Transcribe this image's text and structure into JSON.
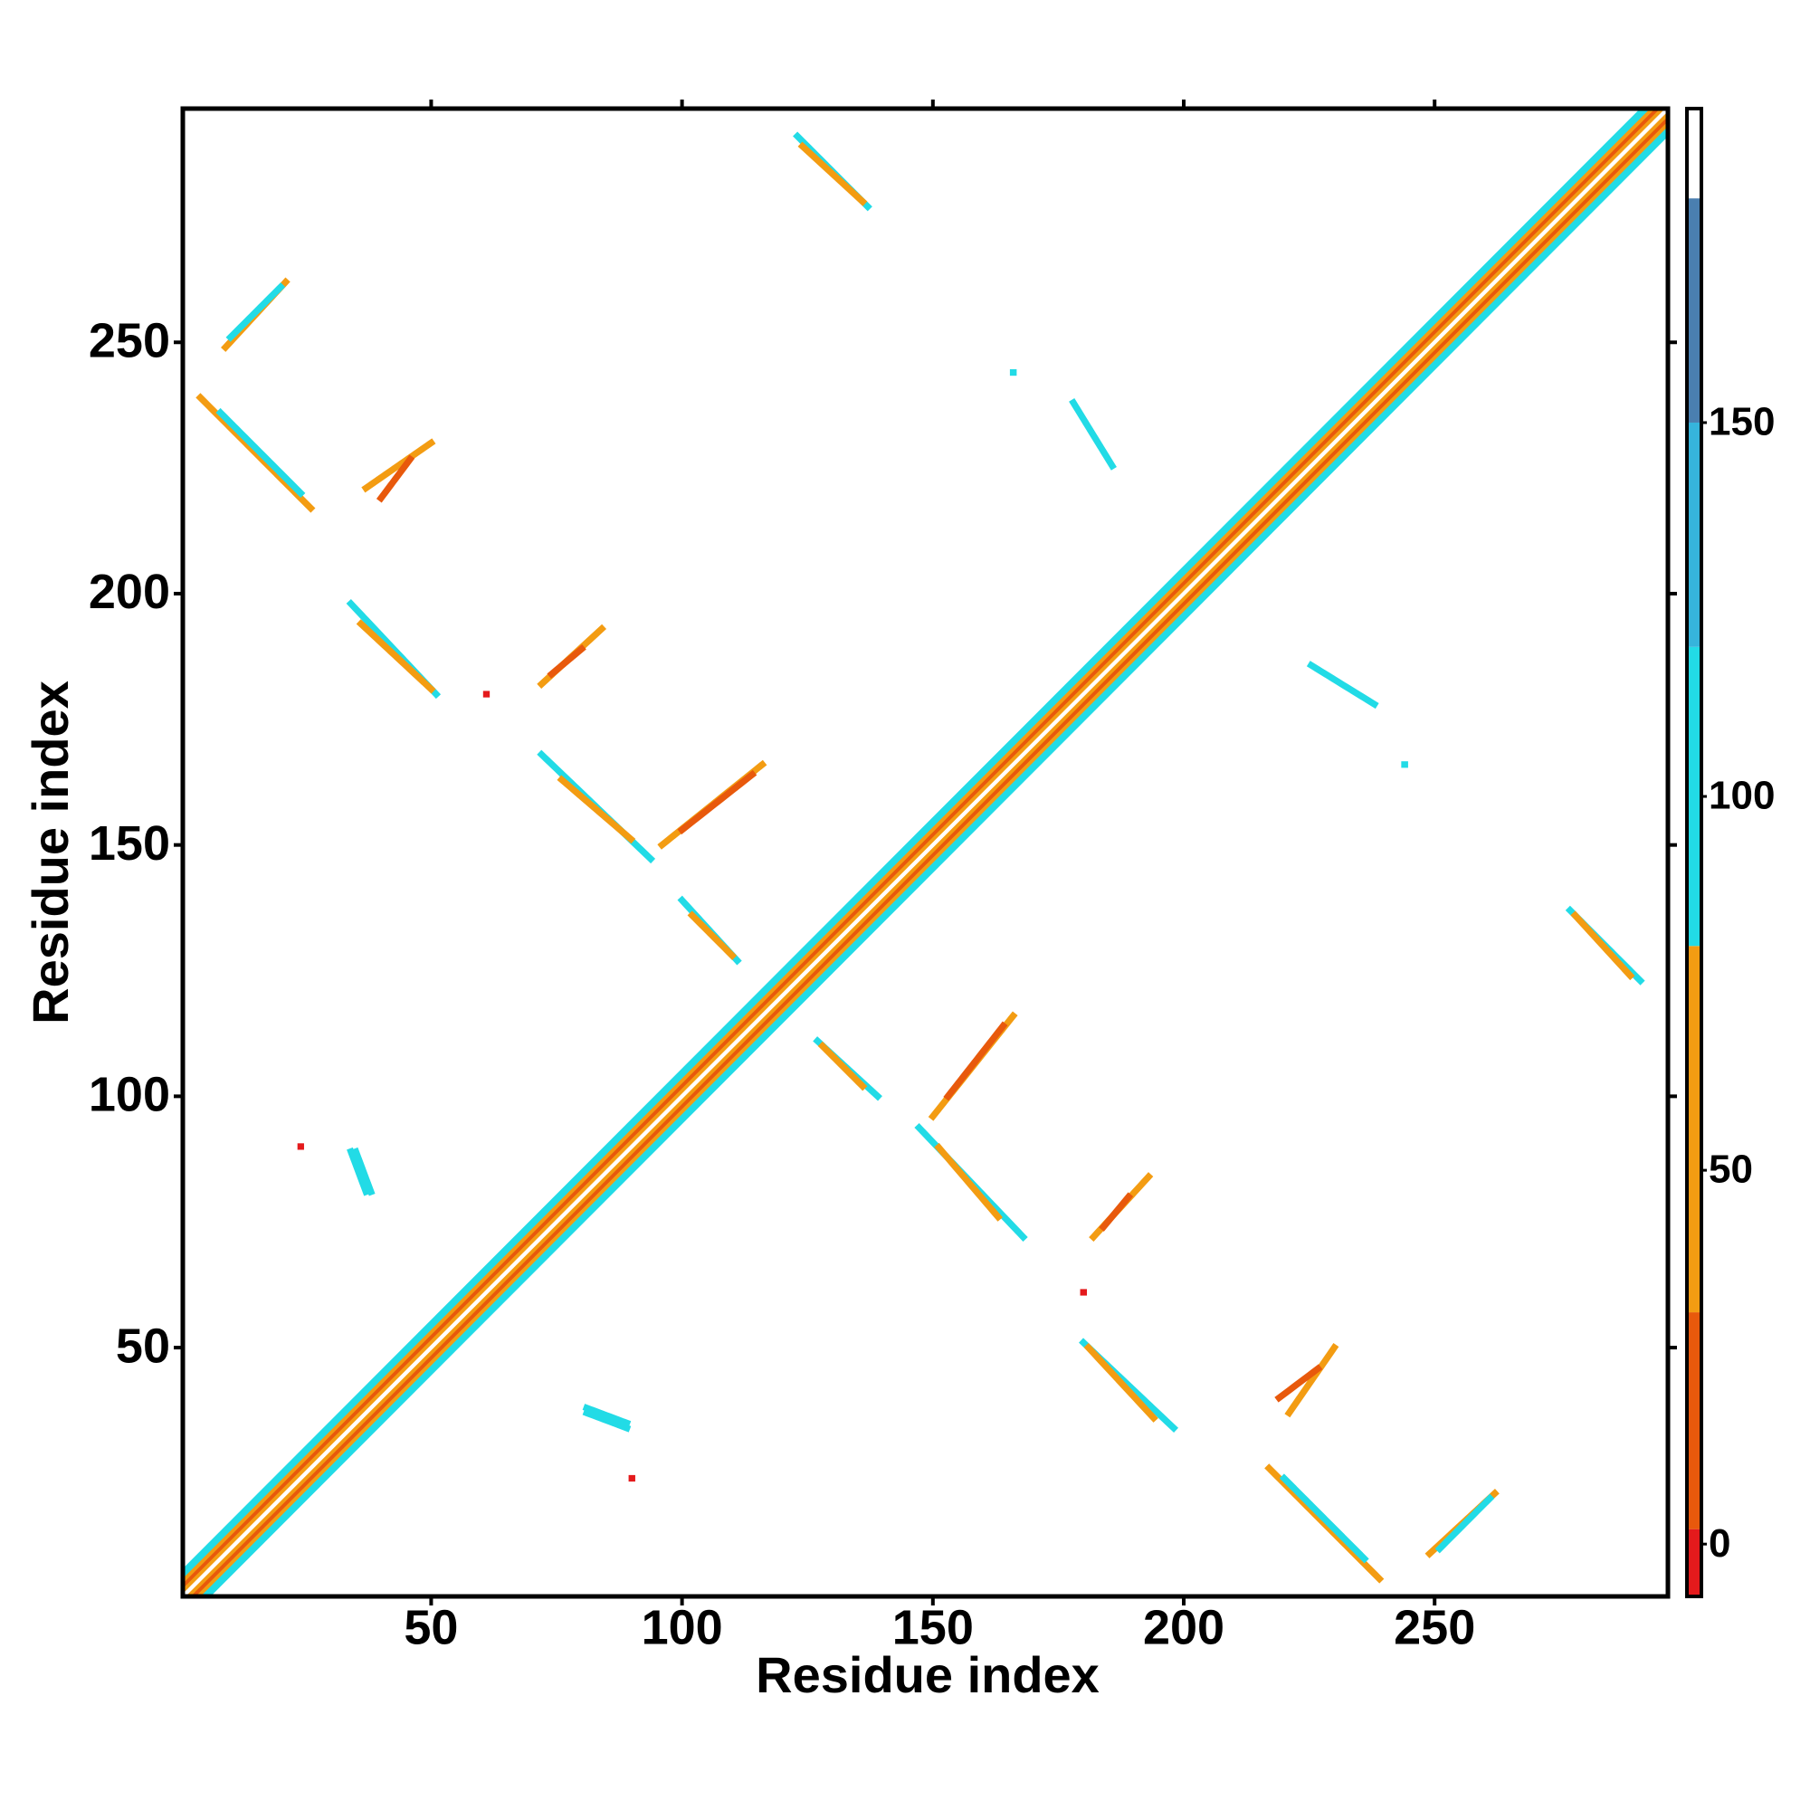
{
  "chart_data": {
    "type": "contact-map",
    "x_label": "Residue index",
    "y_label": "Residue index",
    "xlim": [
      0.5,
      296.5
    ],
    "ylim": [
      0.5,
      296.5
    ],
    "xticks": [
      50,
      100,
      150,
      200,
      250
    ],
    "yticks": [
      50,
      100,
      150,
      200,
      250
    ],
    "symmetric": true,
    "diagonal": [
      {
        "offset": 5,
        "value": 95
      },
      {
        "offset": 4,
        "value": 90
      },
      {
        "offset": 3,
        "value": 50
      },
      {
        "offset": 2,
        "value": 20
      },
      {
        "offset": 1,
        "value": 50
      },
      {
        "offset": 0,
        "value": 185
      }
    ],
    "contacts": [
      {
        "x": [
          123,
          137
        ],
        "y": [
          291,
          277
        ],
        "value": 95
      },
      {
        "x": [
          124,
          136
        ],
        "y": [
          289,
          278
        ],
        "value": 50
      },
      {
        "x": [
          9,
          21
        ],
        "y": [
          249,
          262
        ],
        "value": 50
      },
      {
        "x": [
          10,
          20
        ],
        "y": [
          251,
          261
        ],
        "value": 90
      },
      {
        "x": [
          4,
          26
        ],
        "y": [
          239,
          217
        ],
        "value": 50
      },
      {
        "x": [
          8,
          24
        ],
        "y": [
          236,
          220
        ],
        "value": 95
      },
      {
        "x": [
          37,
          50
        ],
        "y": [
          221,
          230
        ],
        "value": 50
      },
      {
        "x": [
          40,
          46
        ],
        "y": [
          219,
          227
        ],
        "value": 20
      },
      {
        "x": [
          34,
          51
        ],
        "y": [
          198,
          180
        ],
        "value": 95
      },
      {
        "x": [
          36,
          50
        ],
        "y": [
          194,
          181
        ],
        "value": 50
      },
      {
        "x": [
          72,
          84
        ],
        "y": [
          182,
          193
        ],
        "value": 50
      },
      {
        "x": [
          74,
          80
        ],
        "y": [
          184,
          189
        ],
        "value": 20
      },
      {
        "x": [
          72,
          94
        ],
        "y": [
          168,
          147
        ],
        "value": 95
      },
      {
        "x": [
          76,
          90
        ],
        "y": [
          163,
          151
        ],
        "value": 50
      },
      {
        "x": [
          96,
          116
        ],
        "y": [
          150,
          166
        ],
        "value": 40
      },
      {
        "x": [
          100,
          114
        ],
        "y": [
          153,
          164
        ],
        "value": 20
      },
      {
        "x": [
          100,
          111
        ],
        "y": [
          139,
          127
        ],
        "value": 95
      },
      {
        "x": [
          102,
          110
        ],
        "y": [
          136,
          128
        ],
        "value": 50
      },
      {
        "x": [
          34,
          37
        ],
        "y": [
          89,
          81
        ],
        "value": 95
      },
      {
        "x": [
          81,
          89
        ],
        "y": [
          38,
          35
        ],
        "value": 95
      },
      {
        "x": [
          178,
          186
        ],
        "y": [
          238,
          225
        ],
        "value": 90
      },
      {
        "x": [
          166,
          166
        ],
        "y": [
          244,
          244
        ],
        "value": 90
      },
      {
        "x": [
          24,
          24
        ],
        "y": [
          90,
          90
        ],
        "value": 0
      },
      {
        "x": [
          61,
          61
        ],
        "y": [
          180,
          180
        ],
        "value": 0
      }
    ],
    "colorbar": {
      "lim": [
        -7,
        192
      ],
      "ticks": [
        0,
        50,
        100,
        150
      ],
      "bins": [
        -7,
        2,
        31,
        80,
        120,
        150,
        180,
        192
      ],
      "colors": [
        "#e41a1c",
        "#e8590c",
        "#f39c12",
        "#22dbe6",
        "#36b4dc",
        "#4a7fb0",
        "#ffffff"
      ]
    }
  }
}
